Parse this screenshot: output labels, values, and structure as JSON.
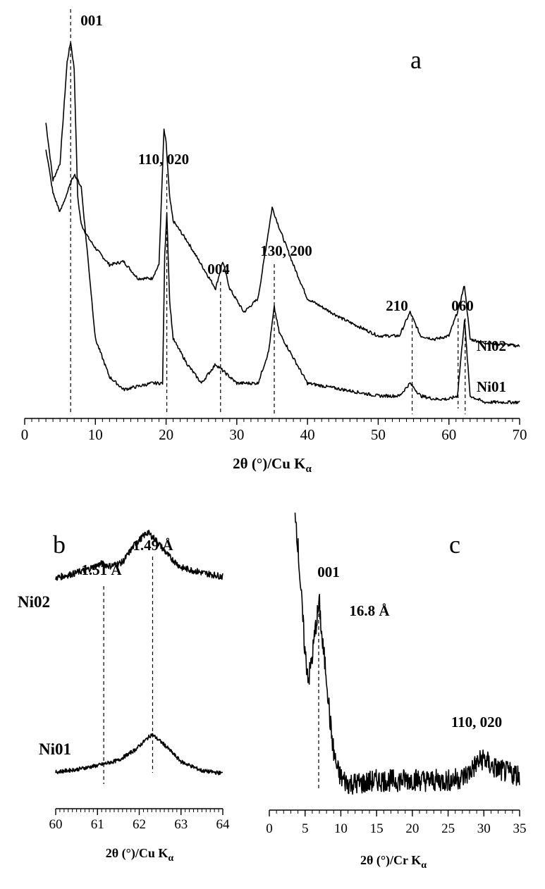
{
  "chart_data": [
    {
      "panel": "a",
      "type": "line",
      "xlabel": "2θ (°)/Cu K",
      "xlabel_sub": "α",
      "xlim": [
        0,
        70
      ],
      "x_ticks": [
        0,
        10,
        20,
        30,
        40,
        50,
        60,
        70
      ],
      "grid": false,
      "series": [
        {
          "name": "Ni02",
          "x": [
            3,
            4,
            5,
            6,
            6.5,
            7,
            7.5,
            8,
            9,
            10,
            12,
            14,
            16,
            18,
            19,
            19.7,
            20,
            20.5,
            21,
            23,
            25,
            27,
            28,
            29,
            31,
            33,
            35,
            36,
            38,
            40,
            45,
            50,
            53,
            54.5,
            56,
            58,
            60,
            61.2,
            62.2,
            63,
            65,
            70
          ],
          "y": [
            72,
            55,
            60,
            90,
            96,
            88,
            50,
            42,
            38,
            35,
            30,
            31,
            26,
            26,
            30,
            70,
            66,
            50,
            43,
            37,
            30,
            23,
            31,
            23,
            16,
            20,
            47,
            41,
            30,
            20,
            14,
            9,
            9,
            16,
            9,
            8,
            9,
            16,
            24,
            8,
            7,
            6
          ]
        },
        {
          "name": "Ni01",
          "x": [
            3,
            4,
            5,
            6,
            7,
            8,
            9,
            10,
            12,
            14,
            18,
            19.5,
            19.8,
            20.1,
            20.5,
            21,
            23,
            25,
            27,
            28,
            30,
            33,
            34.5,
            35.3,
            36,
            38,
            40,
            45,
            50,
            53,
            54.5,
            56,
            58,
            60,
            61.2,
            62.2,
            63,
            65,
            70
          ],
          "y": [
            40,
            33,
            30,
            33,
            36,
            34,
            22,
            10,
            4,
            2,
            3,
            3,
            23,
            30,
            16,
            10,
            6,
            3,
            6,
            5,
            3,
            3,
            8,
            15,
            11,
            7,
            3,
            2,
            1,
            1,
            3,
            1,
            0.5,
            0.5,
            1,
            13,
            1,
            0,
            0
          ]
        }
      ],
      "annotations": [
        {
          "label": "001",
          "x": 6.5
        },
        {
          "label": "110, 020",
          "x": 20.1
        },
        {
          "label": "004",
          "x": 27.7
        },
        {
          "label": "130, 200",
          "x": 35.3
        },
        {
          "label": "210",
          "x": 54.8
        },
        {
          "label": "060",
          "x": 62.3
        }
      ],
      "extra_marker_x": 61.3
    },
    {
      "panel": "b",
      "type": "line",
      "xlabel": "2θ (°)/Cu  K",
      "xlabel_sub": "α",
      "xlim": [
        60,
        64
      ],
      "x_ticks": [
        60,
        61,
        62,
        63,
        64
      ],
      "grid": false,
      "series": [
        {
          "name": "Ni02",
          "x": [
            60,
            60.4,
            60.8,
            61.1,
            61.3,
            61.6,
            61.9,
            62.2,
            62.4,
            62.7,
            63,
            63.5,
            64
          ],
          "y": [
            49,
            52,
            56,
            60,
            58,
            61,
            75,
            84,
            78,
            66,
            57,
            53,
            50
          ]
        },
        {
          "name": "Ni01",
          "x": [
            60,
            60.5,
            61,
            61.5,
            61.9,
            62.3,
            62.6,
            63,
            63.5,
            64
          ],
          "y": [
            13,
            15,
            18,
            22,
            30,
            42,
            34,
            21,
            14,
            12
          ]
        }
      ],
      "annotations": [
        {
          "label": "1.51 Å",
          "x": 61.15
        },
        {
          "label": "1.49 Å",
          "x": 62.32
        }
      ]
    },
    {
      "panel": "c",
      "type": "line",
      "xlabel": "2θ (°)/Cr  K",
      "xlabel_sub": "α",
      "xlim": [
        0,
        35
      ],
      "x_ticks": [
        0,
        5,
        10,
        15,
        20,
        25,
        30,
        35
      ],
      "grid": false,
      "series": [
        {
          "name": "",
          "x": [
            3.6,
            4,
            4.5,
            5,
            5.5,
            6,
            6.5,
            7,
            7.4,
            8,
            8.5,
            9,
            9.5,
            10,
            11,
            13,
            15,
            18,
            20,
            22,
            25,
            27,
            28,
            29,
            30,
            31,
            33,
            35
          ],
          "y": [
            100,
            86,
            67,
            48,
            39,
            47,
            58,
            66,
            52,
            40,
            24,
            13,
            7,
            4,
            2,
            2,
            3,
            3,
            3.5,
            3,
            3,
            4,
            6,
            9,
            11,
            8,
            6,
            5
          ]
        }
      ],
      "annotations": [
        {
          "label": "001",
          "x": 6.9
        },
        {
          "label": "16.8 Å",
          "x": 6.9
        },
        {
          "label": "110, 020",
          "x": 30
        }
      ]
    }
  ]
}
